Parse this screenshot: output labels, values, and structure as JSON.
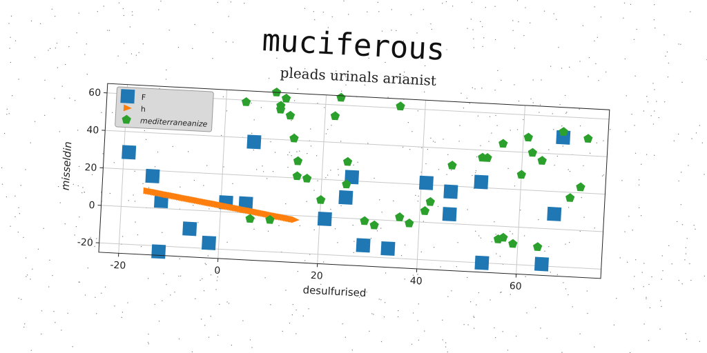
{
  "title": "muciferous",
  "chart_data": {
    "type": "scatter",
    "title": "pleads urinals arianist",
    "xlabel": "desulfurised",
    "ylabel": "misseldin",
    "xlim": [
      -24,
      77
    ],
    "ylim": [
      -25,
      65
    ],
    "xticks": [
      -20,
      0,
      20,
      40,
      60
    ],
    "yticks": [
      -20,
      0,
      20,
      40,
      60
    ],
    "grid": true,
    "legend_position": "top-left",
    "series": [
      {
        "name": "F",
        "marker": "square",
        "color": "#1f77b4",
        "points": [
          [
            -19,
            29
          ],
          [
            -14,
            17
          ],
          [
            -12,
            4
          ],
          [
            -12,
            -23
          ],
          [
            -6,
            -10
          ],
          [
            -2,
            -17
          ],
          [
            1,
            5
          ],
          [
            5,
            5
          ],
          [
            6,
            38
          ],
          [
            21,
            -1
          ],
          [
            25,
            11
          ],
          [
            26,
            22
          ],
          [
            29,
            -14
          ],
          [
            34,
            -15
          ],
          [
            41,
            21
          ],
          [
            46,
            17
          ],
          [
            46,
            5
          ],
          [
            52,
            23
          ],
          [
            53,
            -20
          ],
          [
            65,
            -19
          ],
          [
            67,
            8
          ],
          [
            68,
            49
          ]
        ]
      },
      {
        "name": "h",
        "marker": "triangle",
        "color": "#ff7f0e",
        "points": [
          [
            -15,
            9
          ],
          [
            -13,
            8.3
          ],
          [
            -11,
            7.5
          ],
          [
            -9,
            6.8
          ],
          [
            -7,
            6
          ],
          [
            -5,
            5.3
          ],
          [
            -3,
            4.5
          ],
          [
            -1,
            3.8
          ],
          [
            1,
            3
          ],
          [
            3,
            2.3
          ],
          [
            5,
            1.5
          ],
          [
            7,
            0.8
          ],
          [
            9,
            0
          ],
          [
            11,
            -0.8
          ],
          [
            13,
            -1.5
          ],
          [
            15,
            -2.3
          ]
        ]
      },
      {
        "name": "mediterraneanize",
        "marker": "pentagon",
        "color": "#2ca02c",
        "points": [
          [
            4,
            59
          ],
          [
            6,
            -3
          ],
          [
            10,
            65
          ],
          [
            10,
            -3
          ],
          [
            11,
            56
          ],
          [
            11,
            58
          ],
          [
            12,
            62
          ],
          [
            13,
            53
          ],
          [
            14,
            41
          ],
          [
            15,
            29
          ],
          [
            15,
            21
          ],
          [
            17,
            20
          ],
          [
            20,
            9
          ],
          [
            22,
            54
          ],
          [
            23,
            64
          ],
          [
            25,
            30
          ],
          [
            25,
            18
          ],
          [
            29,
            -1
          ],
          [
            31,
            -3
          ],
          [
            35,
            61
          ],
          [
            36,
            2
          ],
          [
            38,
            -1
          ],
          [
            41,
            6
          ],
          [
            42,
            11
          ],
          [
            46,
            31
          ],
          [
            52,
            36
          ],
          [
            53,
            36
          ],
          [
            56,
            44
          ],
          [
            56,
            -7
          ],
          [
            57,
            -6
          ],
          [
            59,
            -9
          ],
          [
            60,
            28
          ],
          [
            61,
            48
          ],
          [
            62,
            40
          ],
          [
            64,
            36
          ],
          [
            64,
            -10
          ],
          [
            68,
            52
          ],
          [
            70,
            17
          ],
          [
            72,
            23
          ],
          [
            73,
            49
          ]
        ]
      }
    ]
  }
}
